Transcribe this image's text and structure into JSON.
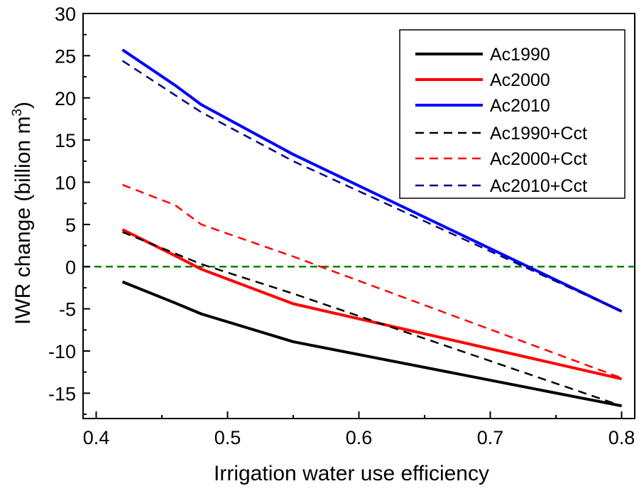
{
  "chart_data": {
    "type": "line",
    "title": "",
    "xlabel": "Irrigation water use efficiency",
    "ylabel": "IWR change (billion m",
    "ylabel_superscript": "3",
    "ylabel_close": ")",
    "xlim": [
      0.39,
      0.81
    ],
    "ylim": [
      -18,
      30
    ],
    "xticks": [
      "0.4",
      "0.5",
      "0.6",
      "0.7",
      "0.8"
    ],
    "yticks": [
      "30",
      "25",
      "20",
      "15",
      "10",
      "5",
      "0",
      "-5",
      "-10",
      "-15"
    ],
    "grid": false,
    "legend_placement": "top-right",
    "reference_line": {
      "y": 0,
      "color": "#008000",
      "style": "dashed"
    },
    "series": [
      {
        "name": "Ac1990",
        "color": "#000000",
        "style": "solid",
        "x": [
          0.42,
          0.46,
          0.48,
          0.55,
          0.8
        ],
        "y": [
          -1.8,
          -4.3,
          -5.6,
          -8.9,
          -16.5
        ]
      },
      {
        "name": "Ac2000",
        "color": "#ff0000",
        "style": "solid",
        "x": [
          0.42,
          0.46,
          0.48,
          0.55,
          0.8
        ],
        "y": [
          4.4,
          1.3,
          -0.3,
          -4.4,
          -13.3
        ]
      },
      {
        "name": "Ac2010",
        "color": "#0000ff",
        "style": "solid",
        "x": [
          0.42,
          0.46,
          0.48,
          0.55,
          0.8
        ],
        "y": [
          25.7,
          21.5,
          19.2,
          13.3,
          -5.3
        ]
      },
      {
        "name": "Ac1990+Cct",
        "color": "#000000",
        "style": "dashed",
        "x": [
          0.42,
          0.48,
          0.55,
          0.8
        ],
        "y": [
          4.1,
          0.3,
          -3.2,
          -16.5
        ]
      },
      {
        "name": "Ac2000+Cct",
        "color": "#ff0000",
        "style": "dashed",
        "x": [
          0.42,
          0.46,
          0.48,
          0.55,
          0.8
        ],
        "y": [
          9.7,
          7.3,
          5.0,
          1.2,
          -13.2
        ]
      },
      {
        "name": "Ac2010+Cct",
        "color": "#000080",
        "style": "dashed",
        "x": [
          0.42,
          0.48,
          0.55,
          0.8
        ],
        "y": [
          24.4,
          18.3,
          12.5,
          -5.3
        ]
      }
    ]
  }
}
